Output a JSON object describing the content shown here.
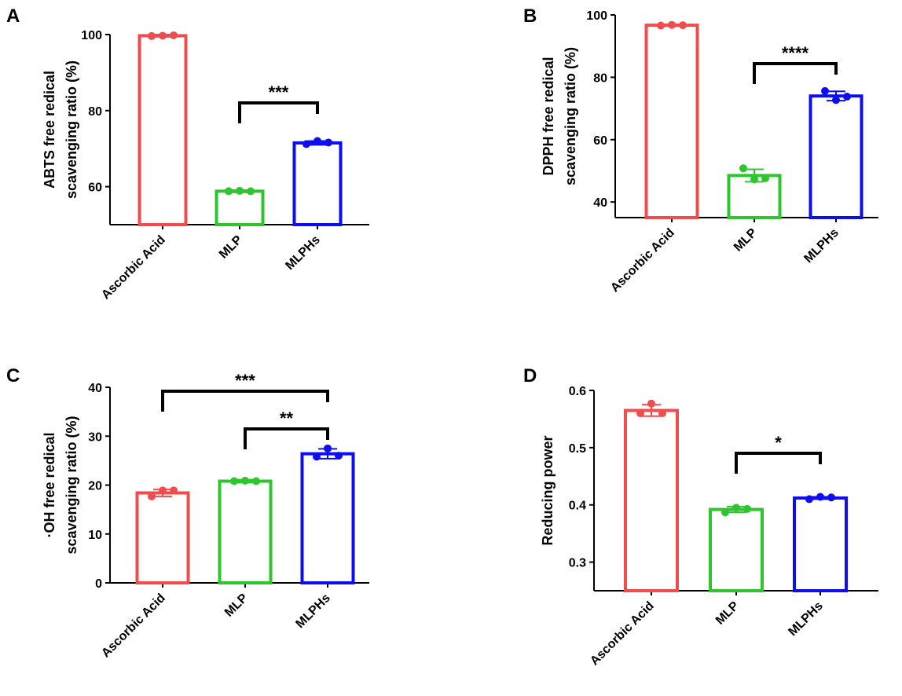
{
  "chart_data": [
    {
      "panel": "A",
      "type": "bar",
      "categories": [
        "Ascorbic Acid",
        "MLP",
        "MLPHs"
      ],
      "values": [
        99.7,
        58.8,
        71.5
      ],
      "errors": [
        0.3,
        0.3,
        0.5
      ],
      "points": [
        [
          99.6,
          99.7,
          99.8
        ],
        [
          58.8,
          58.9,
          58.8
        ],
        [
          71.2,
          72.0,
          71.6
        ]
      ],
      "colors": [
        "#f04c4c",
        "#2ec52e",
        "#0d0df0"
      ],
      "ylabel": [
        "ABTS free redical",
        "scavenging ratio (%)"
      ],
      "ylim": [
        50,
        100
      ],
      "yticks": [
        60,
        80,
        100
      ],
      "ytick_labels": [
        "60",
        "80",
        "100"
      ],
      "significance": [
        {
          "from": 1,
          "to": 2,
          "label": "***"
        }
      ]
    },
    {
      "panel": "B",
      "type": "bar",
      "categories": [
        "Ascorbic Acid",
        "MLP",
        "MLPHs"
      ],
      "values": [
        96.7,
        48.5,
        74.0
      ],
      "errors": [
        0.3,
        2.0,
        1.5
      ],
      "points": [
        [
          96.6,
          96.8,
          96.7
        ],
        [
          50.8,
          47.3,
          47.6
        ],
        [
          75.6,
          72.7,
          73.8
        ]
      ],
      "colors": [
        "#f04c4c",
        "#2ec52e",
        "#0d0df0"
      ],
      "ylabel": [
        "DPPH free redical",
        "scavenging ratio (%)"
      ],
      "ylim": [
        35,
        100
      ],
      "yticks": [
        40,
        60,
        80,
        100
      ],
      "ytick_labels": [
        "40",
        "60",
        "80",
        "100"
      ],
      "significance": [
        {
          "from": 1,
          "to": 2,
          "label": "****"
        }
      ]
    },
    {
      "panel": "C",
      "type": "bar",
      "categories": [
        "Ascorbic Acid",
        "MLP",
        "MLPHs"
      ],
      "values": [
        18.4,
        20.8,
        26.4
      ],
      "errors": [
        0.7,
        0.3,
        1.0
      ],
      "points": [
        [
          17.7,
          18.9,
          18.9
        ],
        [
          20.8,
          20.9,
          20.8
        ],
        [
          25.8,
          27.5,
          26.0
        ]
      ],
      "colors": [
        "#f04c4c",
        "#2ec52e",
        "#0d0df0"
      ],
      "ylabel": [
        "·OH free redical",
        "scavenging ratio (%)"
      ],
      "ylim": [
        0,
        40
      ],
      "yticks": [
        0,
        10,
        20,
        30,
        40
      ],
      "ytick_labels": [
        "0",
        "10",
        "20",
        "30",
        "40"
      ],
      "significance": [
        {
          "from": 0,
          "to": 2,
          "label": "***"
        },
        {
          "from": 1,
          "to": 2,
          "label": "**"
        }
      ]
    },
    {
      "panel": "D",
      "type": "bar",
      "categories": [
        "Ascorbic Acid",
        "MLP",
        "MLPHs"
      ],
      "values": [
        0.565,
        0.392,
        0.412
      ],
      "errors": [
        0.01,
        0.005,
        0.002
      ],
      "points": [
        [
          0.56,
          0.577,
          0.56
        ],
        [
          0.387,
          0.395,
          0.393
        ],
        [
          0.41,
          0.414,
          0.413
        ]
      ],
      "colors": [
        "#f04c4c",
        "#2ec52e",
        "#0d0df0"
      ],
      "ylabel": [
        "Reducing power"
      ],
      "ylim": [
        0.25,
        0.6
      ],
      "yticks": [
        0.3,
        0.4,
        0.5,
        0.6
      ],
      "ytick_labels": [
        "0.3",
        "0.4",
        "0.5",
        "0.6"
      ],
      "significance": [
        {
          "from": 1,
          "to": 2,
          "label": "*"
        }
      ]
    }
  ]
}
